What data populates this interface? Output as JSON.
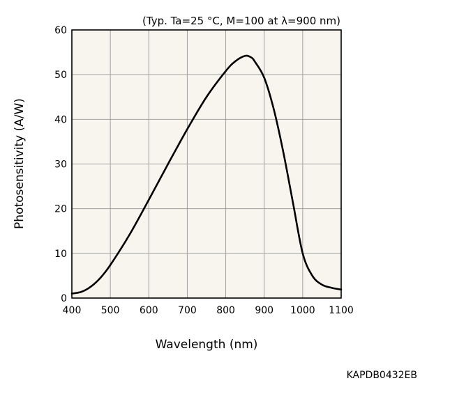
{
  "chart_data": {
    "type": "line",
    "title": "",
    "condition_note": "(Typ. Ta=25 °C, M=100 at λ=900 nm)",
    "xlabel": "Wavelength (nm)",
    "ylabel": "Photosensitivity (A/W)",
    "xlim": [
      400,
      1100
    ],
    "ylim": [
      0,
      60
    ],
    "x_ticks": [
      "400",
      "500",
      "600",
      "700",
      "800",
      "900",
      "1000",
      "1100"
    ],
    "y_ticks": [
      "0",
      "10",
      "20",
      "30",
      "40",
      "50",
      "60"
    ],
    "grid": true,
    "background_color": "#f7f5ee",
    "line_color": "#000000",
    "grid_color": "#a0a0a0",
    "series": [
      {
        "x": [
          400,
          425,
          450,
          475,
          500,
          550,
          600,
          650,
          700,
          750,
          800,
          825,
          850,
          865,
          875,
          900,
          925,
          950,
          975,
          1000,
          1025,
          1050,
          1075,
          1100
        ],
        "y": [
          1.0,
          1.4,
          2.6,
          4.6,
          7.4,
          14.2,
          22.0,
          30.0,
          37.8,
          45.0,
          50.8,
          53.0,
          54.2,
          53.9,
          53.0,
          49.3,
          42.2,
          32.5,
          21.2,
          10.0,
          5.0,
          3.0,
          2.3,
          1.9
        ]
      }
    ]
  },
  "footer": {
    "code": "KAPDB0432EB"
  }
}
